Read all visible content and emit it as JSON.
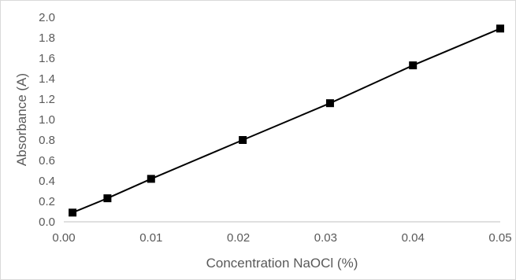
{
  "chart_data": {
    "type": "scatter",
    "title": "",
    "xlabel": "Concentration NaOCl (%)",
    "ylabel": "Absorbance (A)",
    "xlim": [
      0.0,
      0.05
    ],
    "ylim": [
      0.0,
      2.0
    ],
    "x_ticks": [
      "0.00",
      "0.01",
      "0.02",
      "0.03",
      "0.04",
      "0.05"
    ],
    "y_ticks": [
      "0.0",
      "0.2",
      "0.4",
      "0.6",
      "0.8",
      "1.0",
      "1.2",
      "1.4",
      "1.6",
      "1.8",
      "2.0"
    ],
    "grid": false,
    "legend": "none",
    "marker": "square",
    "marker_color": "#000000",
    "line_color": "#000000",
    "series": [
      {
        "x": [
          0.001,
          0.005,
          0.01,
          0.0205,
          0.0305,
          0.04,
          0.05
        ],
        "y": [
          0.09,
          0.23,
          0.42,
          0.8,
          1.16,
          1.53,
          1.89
        ]
      }
    ]
  }
}
